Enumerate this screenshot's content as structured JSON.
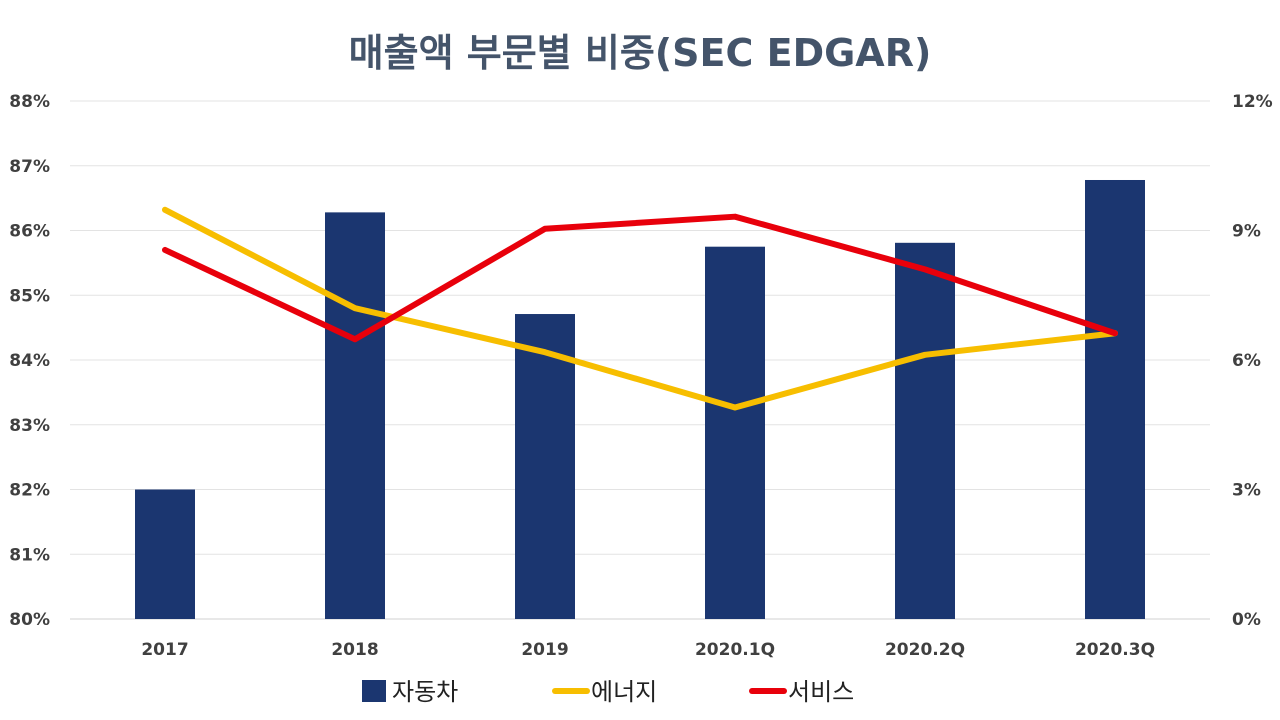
{
  "chart_data": {
    "type": "bar",
    "title": "매출액 부문별 비중(SEC EDGAR)",
    "categories": [
      "2017",
      "2018",
      "2019",
      "2020.1Q",
      "2020.2Q",
      "2020.3Q"
    ],
    "primary_axis": {
      "ylim": [
        0.8,
        0.88
      ],
      "ticks": [
        0.8,
        0.81,
        0.82,
        0.83,
        0.84,
        0.85,
        0.86,
        0.87,
        0.88
      ],
      "tick_labels": [
        "80%",
        "81%",
        "82%",
        "83%",
        "84%",
        "85%",
        "86%",
        "87%",
        "88%"
      ]
    },
    "secondary_axis": {
      "ylim": [
        0.0,
        0.12
      ],
      "ticks": [
        0.0,
        0.03,
        0.06,
        0.09,
        0.12
      ],
      "tick_labels": [
        "0%",
        "3%",
        "6%",
        "9%",
        "12%"
      ]
    },
    "grid": true,
    "legend_position": "bottom",
    "series": [
      {
        "name": "자동차",
        "type": "bar",
        "axis": "primary",
        "color": "#1B3670",
        "values": [
          0.82,
          0.8628,
          0.8471,
          0.8575,
          0.8581,
          0.8678
        ]
      },
      {
        "name": "에너지",
        "type": "line",
        "axis": "secondary",
        "color": "#F7BE00",
        "values": [
          0.0948,
          0.072,
          0.0618,
          0.049,
          0.0612,
          0.0662
        ]
      },
      {
        "name": "서비스",
        "type": "line",
        "axis": "secondary",
        "color": "#E8000B",
        "values": [
          0.0855,
          0.0648,
          0.0904,
          0.0932,
          0.081,
          0.0662
        ]
      }
    ]
  }
}
